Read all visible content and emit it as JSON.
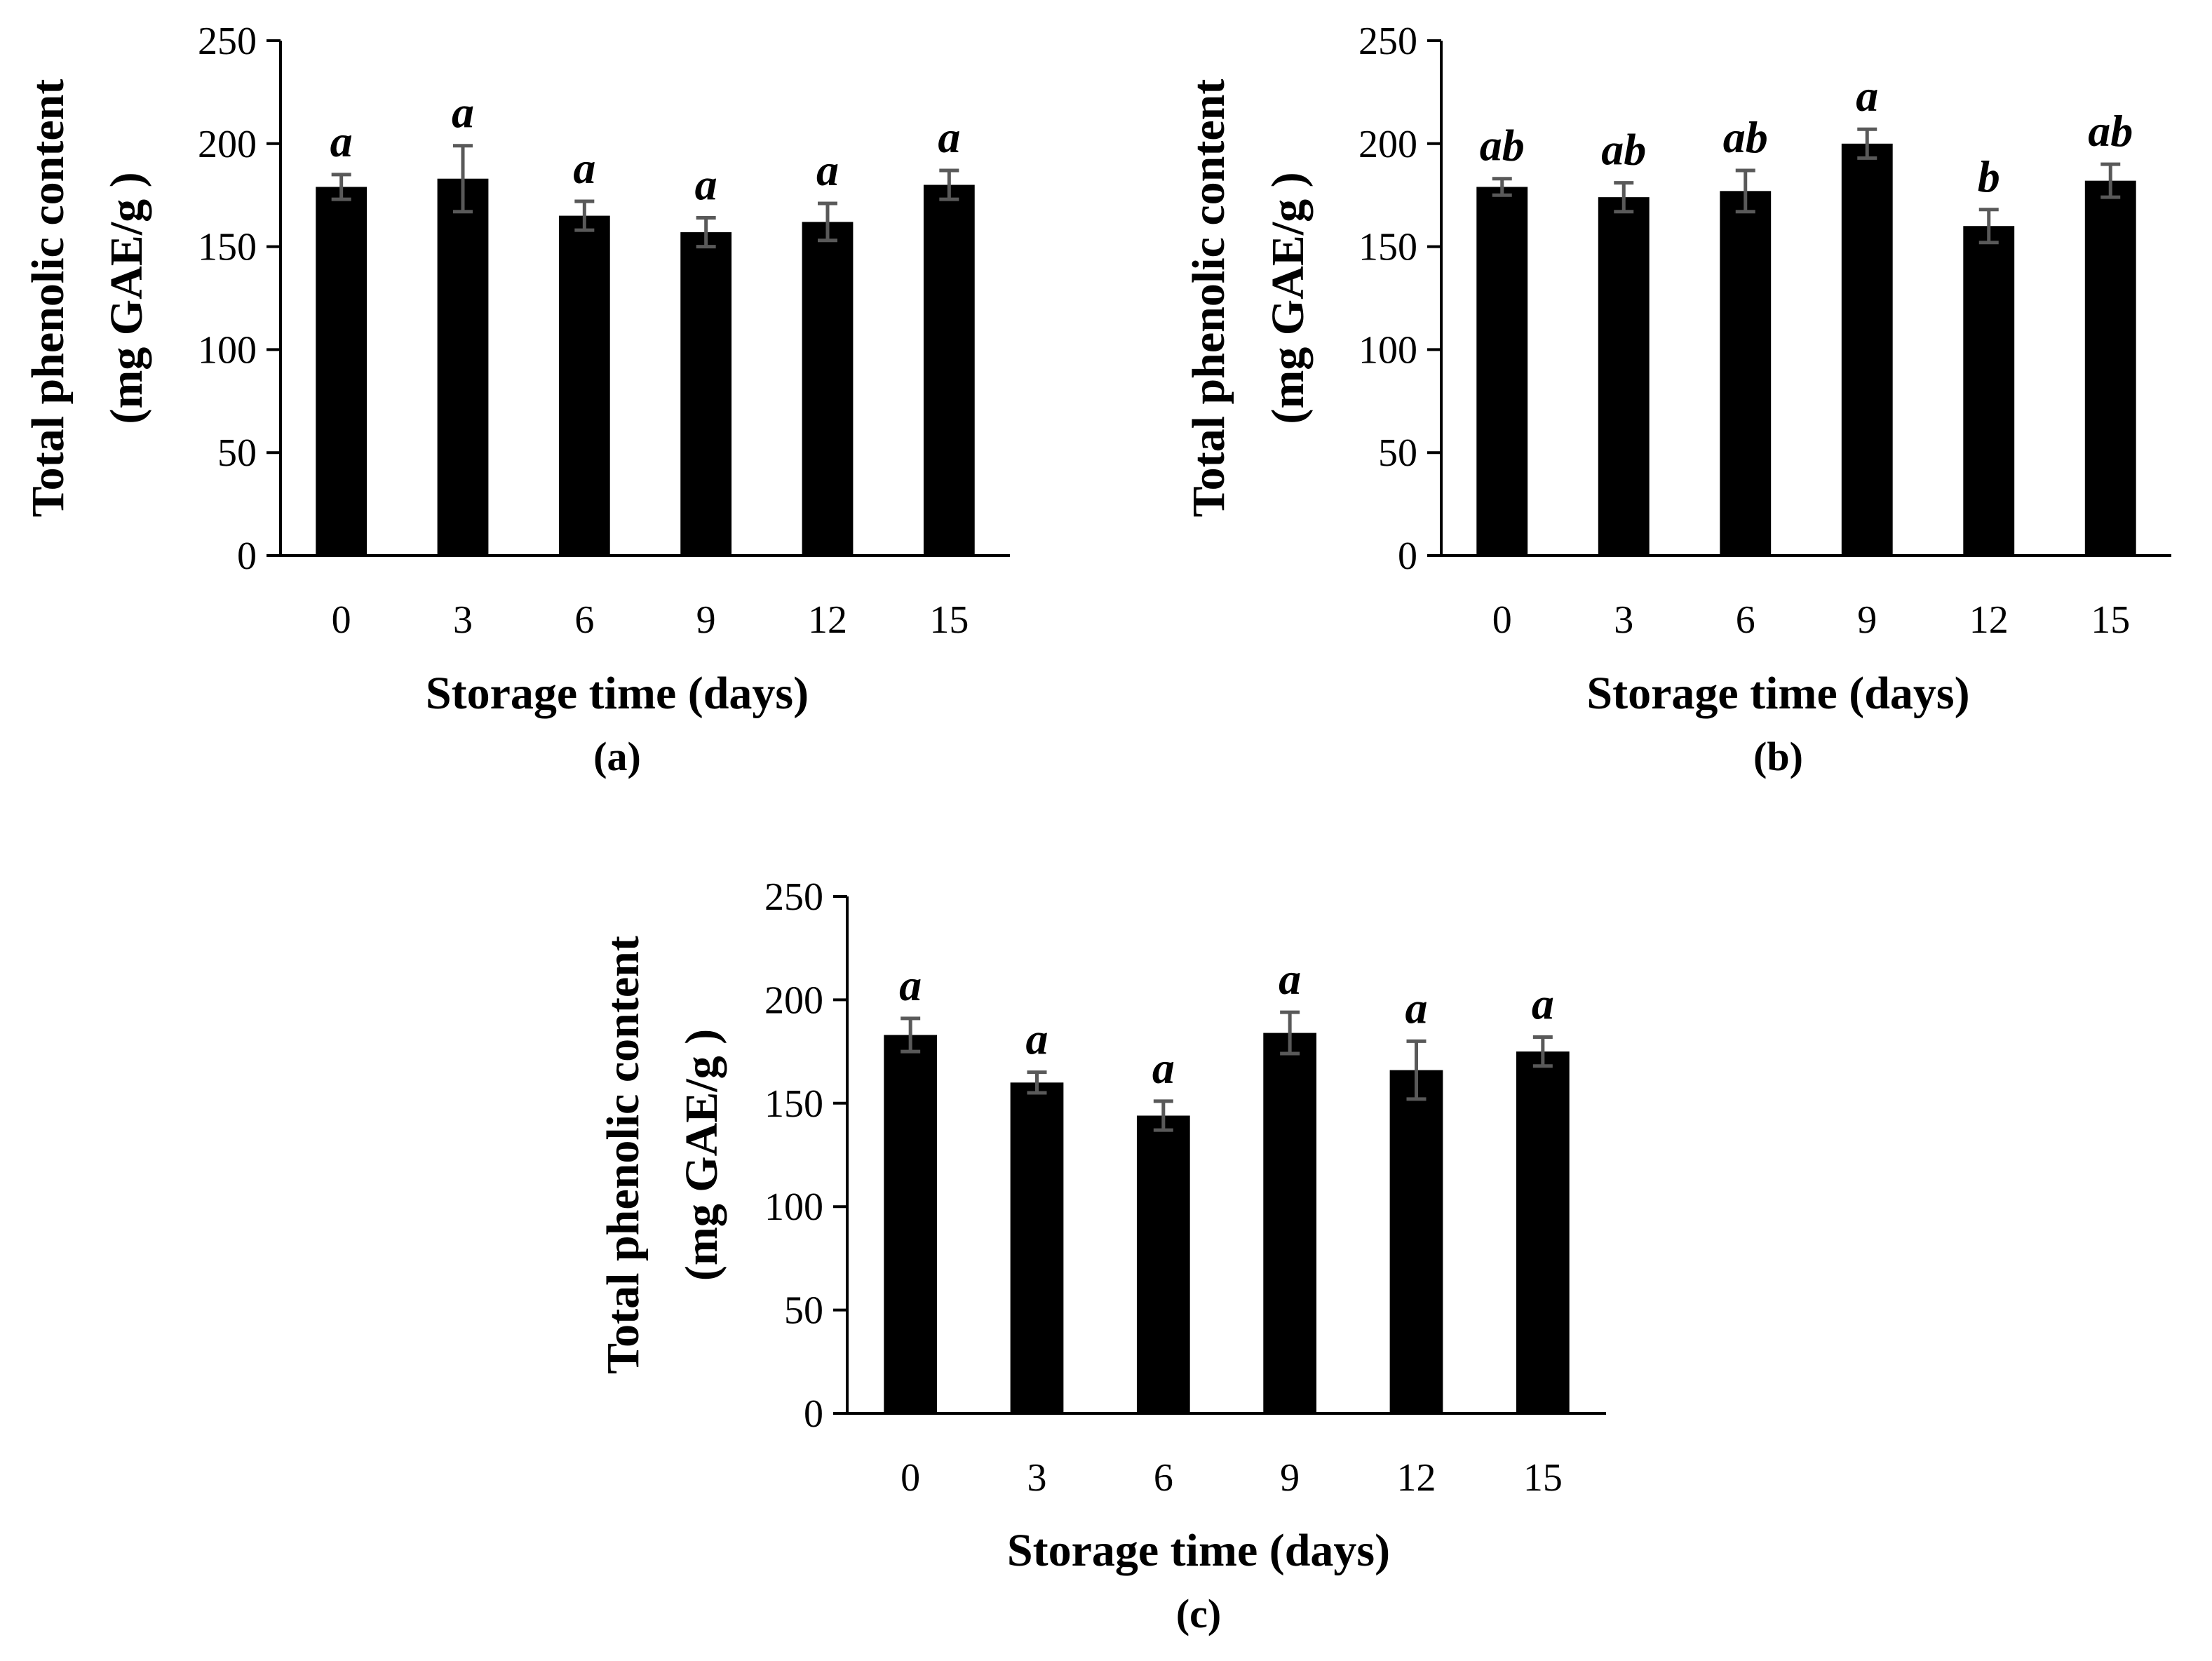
{
  "chart_data": [
    {
      "type": "bar",
      "panel_label": "(a)",
      "xlabel": "Storage time (days)",
      "ylabel_line1": "Total phenolic content",
      "ylabel_line2": "(mg GAE/g )",
      "ylim": [
        0,
        250
      ],
      "yticks": [
        "0",
        "50",
        "100",
        "150",
        "200",
        "250"
      ],
      "categories": [
        "0",
        "3",
        "6",
        "9",
        "12",
        "15"
      ],
      "values": [
        179,
        183,
        165,
        157,
        162,
        180
      ],
      "errors": [
        6,
        16,
        7,
        7,
        9,
        7
      ],
      "significance": [
        "a",
        "a",
        "a",
        "a",
        "a",
        "a"
      ],
      "colors": {
        "bar": "#000000",
        "error_bar": "#595959",
        "axis": "#000000"
      }
    },
    {
      "type": "bar",
      "panel_label": "(b)",
      "xlabel": "Storage time (days)",
      "ylabel_line1": "Total phenolic content",
      "ylabel_line2": "(mg GAE/g )",
      "ylim": [
        0,
        250
      ],
      "yticks": [
        "0",
        "50",
        "100",
        "150",
        "200",
        "250"
      ],
      "categories": [
        "0",
        "3",
        "6",
        "9",
        "12",
        "15"
      ],
      "values": [
        179,
        174,
        177,
        200,
        160,
        182
      ],
      "errors": [
        4,
        7,
        10,
        7,
        8,
        8
      ],
      "significance": [
        "ab",
        "ab",
        "ab",
        "a",
        "b",
        "ab"
      ],
      "colors": {
        "bar": "#000000",
        "error_bar": "#595959",
        "axis": "#000000"
      }
    },
    {
      "type": "bar",
      "panel_label": "(c)",
      "xlabel": "Storage time (days)",
      "ylabel_line1": "Total phenolic content",
      "ylabel_line2": "(mg GAE/g )",
      "ylim": [
        0,
        250
      ],
      "yticks": [
        "0",
        "50",
        "100",
        "150",
        "200",
        "250"
      ],
      "categories": [
        "0",
        "3",
        "6",
        "9",
        "12",
        "15"
      ],
      "values": [
        183,
        160,
        144,
        184,
        166,
        175
      ],
      "errors": [
        8,
        5,
        7,
        10,
        14,
        7
      ],
      "significance": [
        "a",
        "a",
        "a",
        "a",
        "a",
        "a"
      ],
      "colors": {
        "bar": "#000000",
        "error_bar": "#595959",
        "axis": "#000000"
      }
    }
  ]
}
